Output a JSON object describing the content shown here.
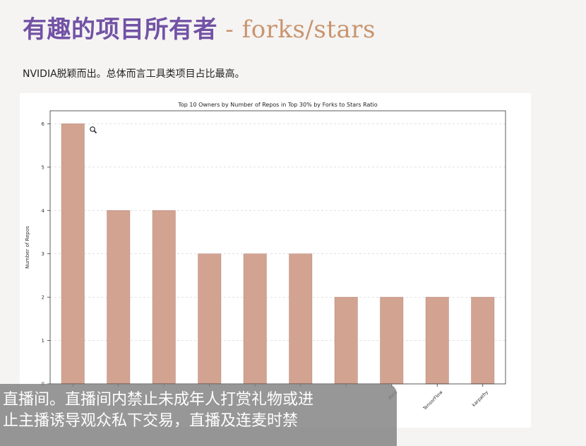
{
  "slide": {
    "title_cn": "有趣的项目所有者",
    "title_sep": " - ",
    "title_en": "forks/stars",
    "subtitle": "NVIDIA脱颖而出。总体而言工具类项目占比最高。"
  },
  "colors": {
    "bar": "#d3a392",
    "bar_stroke": "#b88878",
    "grid": "#cfcfcf"
  },
  "chart_data": {
    "type": "bar",
    "title": "Top 10 Owners by Number of Repos in Top 30% by Forks to Stars Ratio",
    "ylabel": "Number of Repos",
    "xlabel": "",
    "ylim": [
      0,
      6.3
    ],
    "yticks": [
      0,
      1,
      2,
      3,
      4,
      5,
      6
    ],
    "grid": true,
    "categories": [
      "",
      "",
      "",
      "",
      "",
      "",
      "",
      "docs",
      "TensorFlow",
      "karpathy"
    ],
    "values": [
      6,
      4,
      4,
      3,
      3,
      3,
      2,
      2,
      2,
      2
    ],
    "bar_annotations": [
      "",
      "",
      "",
      "",
      "",
      "",
      "",
      "",
      "",
      ""
    ]
  },
  "overlay": {
    "lines": [
      "直播间。直播间内禁止未成年人打赏礼物或进",
      "止主播诱导观众私下交易，直播及连麦时禁",
      ""
    ]
  }
}
